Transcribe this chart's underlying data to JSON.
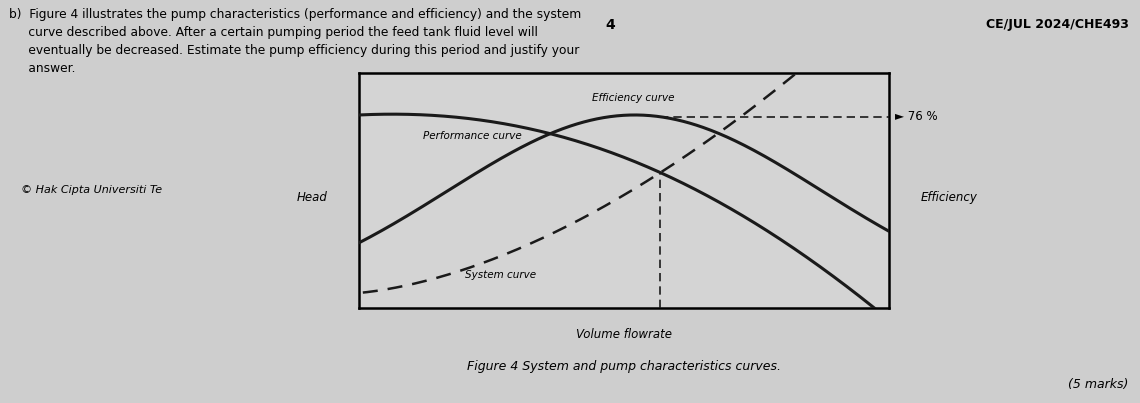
{
  "fig_width": 11.4,
  "fig_height": 4.03,
  "bg_color": "#cecece",
  "plot_bg_color": "#d4d4d4",
  "header_number": "4",
  "header_code": "CE/JUL 2024/CHE493",
  "copyright_text": "© Hak Cipta Universiti Te",
  "head_label": "Head",
  "efficiency_label": "Efficiency",
  "xlabel": "Volume flowrate",
  "figure_caption": "Figure 4 System and pump characteristics curves.",
  "marks_text": "(5 marks)",
  "efficiency_76_label": "► 76 %",
  "performance_curve_label": "Performance curve",
  "system_curve_label": "System curve",
  "efficiency_curve_label": "Efficiency curve",
  "question_line1": "b)  Figure 4 illustrates the pump characteristics (performance and efficiency) and the system",
  "question_line2": "     curve described above. After a certain pumping period the feed tank fluid level will",
  "question_line3": "     eventually be decreased. Estimate the pump efficiency during this period and justify your",
  "question_line4": "     answer."
}
